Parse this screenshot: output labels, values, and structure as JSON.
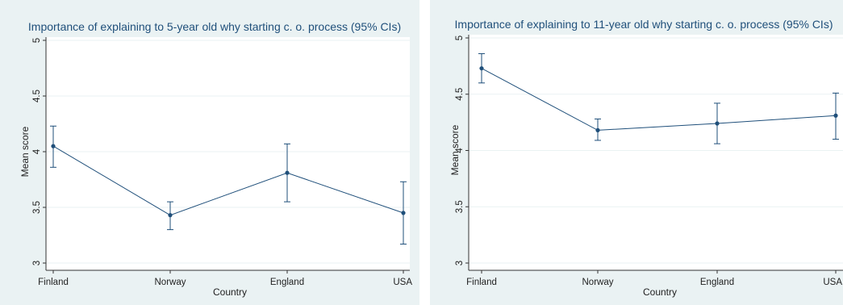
{
  "chart_data": [
    {
      "type": "line",
      "title": "Importance of explaining to 5-year old why starting c. o. process (95% CIs)",
      "xlabel": "Country",
      "ylabel": "Mean score",
      "categories": [
        "Finland",
        "Norway",
        "England",
        "USA"
      ],
      "values": [
        4.05,
        3.43,
        3.81,
        3.45
      ],
      "ci_low": [
        3.86,
        3.3,
        3.55,
        3.17
      ],
      "ci_high": [
        4.23,
        3.55,
        4.07,
        3.73
      ],
      "yticks": [
        "3",
        "3.5",
        "4",
        "4.5",
        "5"
      ],
      "ylim": [
        3,
        5
      ],
      "grid": true,
      "colors": {
        "line": "#1f4f7a",
        "grid": "#eaf2f3",
        "plot_bg": "#ffffff",
        "panel_bg": "#eaf2f3"
      }
    },
    {
      "type": "line",
      "title": "Importance of explaining to 11-year old why starting c. o. process (95% CIs)",
      "xlabel": "Country",
      "ylabel": "Mean score",
      "categories": [
        "Finland",
        "Norway",
        "England",
        "USA"
      ],
      "values": [
        4.73,
        4.18,
        4.24,
        4.31
      ],
      "ci_low": [
        4.6,
        4.09,
        4.06,
        4.1
      ],
      "ci_high": [
        4.86,
        4.28,
        4.42,
        4.51
      ],
      "yticks": [
        "3",
        "3.5",
        "4",
        "4.5",
        "5"
      ],
      "ylim": [
        3,
        5
      ],
      "grid": true,
      "colors": {
        "line": "#1f4f7a",
        "grid": "#eaf2f3",
        "plot_bg": "#ffffff",
        "panel_bg": "#eaf2f3"
      }
    }
  ]
}
